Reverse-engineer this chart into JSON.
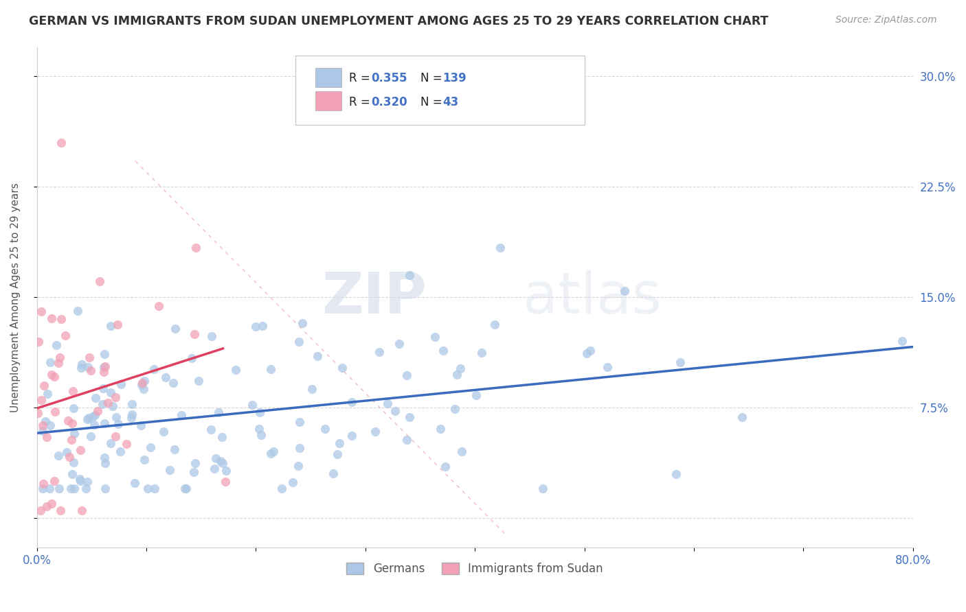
{
  "title": "GERMAN VS IMMIGRANTS FROM SUDAN UNEMPLOYMENT AMONG AGES 25 TO 29 YEARS CORRELATION CHART",
  "source": "Source: ZipAtlas.com",
  "ylabel": "Unemployment Among Ages 25 to 29 years",
  "xlim": [
    0.0,
    0.8
  ],
  "ylim": [
    -0.02,
    0.32
  ],
  "xtick_vals": [
    0.0,
    0.1,
    0.2,
    0.3,
    0.4,
    0.5,
    0.6,
    0.7,
    0.8
  ],
  "xticklabels": [
    "0.0%",
    "",
    "",
    "",
    "",
    "",
    "",
    "",
    "80.0%"
  ],
  "ytick_vals": [
    0.0,
    0.075,
    0.15,
    0.225,
    0.3
  ],
  "yticklabels_right": [
    "",
    "7.5%",
    "15.0%",
    "22.5%",
    "30.0%"
  ],
  "german_R": 0.355,
  "german_N": 139,
  "sudan_R": 0.32,
  "sudan_N": 43,
  "german_color": "#adc8e6",
  "sudan_color": "#f2a0b5",
  "german_line_color": "#3a6bbf",
  "sudan_line_color": "#e04060",
  "legend_label_german": "Germans",
  "legend_label_sudan": "Immigrants from Sudan",
  "watermark_zip": "ZIP",
  "watermark_atlas": "atlas",
  "title_color": "#333333",
  "axis_label_color": "#555555",
  "tick_color_right": "#4472c4",
  "R_N_color": "#4472c4",
  "grid_color": "#cccccc",
  "background_color": "#ffffff",
  "german_seed": 2024,
  "sudan_seed": 999,
  "ref_line_color": "#e8a0a8",
  "ref_line_alpha": 0.6
}
